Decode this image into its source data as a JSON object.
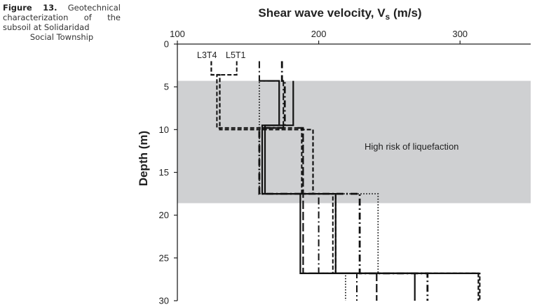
{
  "caption": {
    "label": "Figure 13.",
    "text": "Geotechnical characterization of the subsoil at Solidaridad",
    "last_line": "Social Township"
  },
  "chart_data": {
    "type": "line",
    "title": "Shear wave velocity, V",
    "title_sub": "s",
    "title_unit": " (m/s)",
    "xlabel": "Shear wave velocity, Vs (m/s)",
    "ylabel": "Depth (m)",
    "xlim": [
      100,
      350
    ],
    "ylim": [
      0,
      30
    ],
    "x_axis_position": "top",
    "y_inverted": true,
    "x_ticks": [
      100,
      200,
      300
    ],
    "y_ticks": [
      0,
      5,
      10,
      15,
      20,
      25,
      30
    ],
    "legend_placement": "top-left",
    "legend_labels": [
      "L3T4",
      "L5T1"
    ],
    "annotation": "High risk of liquefaction",
    "shaded_band": {
      "depth_from": 4.3,
      "depth_to": 18.6,
      "color": "#cfd0d2"
    },
    "series": [
      {
        "name": "L3T4",
        "style": "dashed",
        "width": 2.2,
        "points": [
          [
            124,
            2.0
          ],
          [
            124,
            3.6
          ],
          [
            130,
            3.6
          ],
          [
            130,
            10.0
          ],
          [
            196,
            10.0
          ],
          [
            196,
            17.5
          ],
          [
            212,
            17.5
          ],
          [
            212,
            26.8
          ],
          [
            313,
            26.8
          ],
          [
            313,
            30
          ]
        ]
      },
      {
        "name": "L5T1",
        "style": "dashed",
        "width": 2.0,
        "points": [
          [
            142,
            2.0
          ],
          [
            142,
            3.6
          ],
          [
            128,
            3.6
          ],
          [
            128,
            9.8
          ],
          [
            188,
            9.8
          ],
          [
            188,
            17.5
          ],
          [
            210,
            17.5
          ],
          [
            210,
            26.8
          ],
          [
            314,
            26.8
          ],
          [
            314,
            30
          ]
        ]
      },
      {
        "style": "solid",
        "width": 2.2,
        "points": [
          [
            158,
            4.3
          ],
          [
            172,
            4.3
          ],
          [
            172,
            9.5
          ],
          [
            160,
            9.5
          ],
          [
            160,
            17.5
          ],
          [
            187,
            17.5
          ],
          [
            187,
            26.8
          ],
          [
            268,
            26.8
          ],
          [
            268,
            30
          ]
        ]
      },
      {
        "style": "solid",
        "width": 2.2,
        "points": [
          [
            182,
            4.3
          ],
          [
            182,
            9.5
          ],
          [
            162,
            9.5
          ],
          [
            162,
            17.5
          ],
          [
            212,
            17.5
          ],
          [
            212,
            26.8
          ],
          [
            313,
            26.8
          ]
        ]
      },
      {
        "style": "dotted",
        "width": 1.8,
        "points": [
          [
            165,
            4.3
          ],
          [
            158,
            4.3
          ],
          [
            158,
            9.8
          ],
          [
            158,
            17.5
          ],
          [
            242,
            17.5
          ],
          [
            242,
            26.8
          ],
          [
            219,
            26.8
          ],
          [
            219,
            30
          ]
        ]
      },
      {
        "style": "dashdot",
        "width": 2.0,
        "points": [
          [
            158,
            2.0
          ],
          [
            158,
            4.3
          ],
          [
            175,
            4.3
          ],
          [
            175,
            9.8
          ],
          [
            160,
            9.8
          ],
          [
            160,
            17.5
          ],
          [
            200,
            17.5
          ],
          [
            200,
            26.8
          ],
          [
            227,
            26.8
          ],
          [
            227,
            30
          ]
        ]
      },
      {
        "style": "dashdot",
        "width": 2.8,
        "points": [
          [
            174,
            2.0
          ],
          [
            174,
            4.3
          ],
          [
            176,
            4.3
          ],
          [
            176,
            9.8
          ],
          [
            158,
            9.8
          ],
          [
            158,
            17.5
          ],
          [
            229,
            17.5
          ],
          [
            229,
            26.8
          ],
          [
            277,
            26.8
          ],
          [
            277,
            30
          ]
        ]
      },
      {
        "style": "longdash",
        "width": 2.2,
        "points": [
          [
            185,
            9.8
          ],
          [
            189,
            9.8
          ],
          [
            189,
            17.5
          ],
          [
            189,
            26.8
          ],
          [
            241,
            26.8
          ],
          [
            241,
            30
          ]
        ]
      }
    ]
  }
}
